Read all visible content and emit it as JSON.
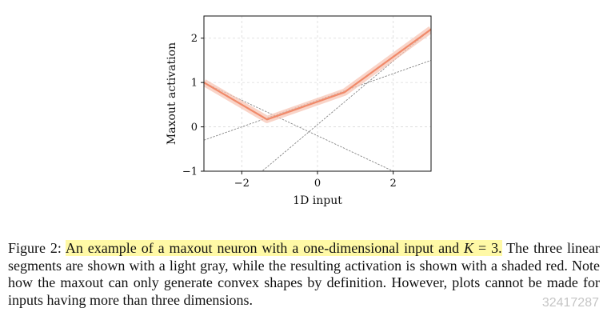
{
  "chart_data": {
    "type": "line",
    "title": "",
    "xlabel": "1D input",
    "ylabel": "Maxout activation",
    "xlim": [
      -3,
      3
    ],
    "ylim": [
      -1,
      2.5
    ],
    "x_ticks": [
      "−2",
      "0",
      "2"
    ],
    "x_tick_values": [
      -2,
      0,
      2
    ],
    "y_ticks": [
      "−1",
      "0",
      "1",
      "2"
    ],
    "y_tick_values": [
      -1,
      0,
      1,
      2
    ],
    "grid": true,
    "colors": {
      "segments": "#888888",
      "activation": "#f08a6a",
      "activation_band": "#f7c2b0"
    },
    "series": [
      {
        "x": [
          -3,
          3
        ],
        "y": [
          -0.3,
          1.5
        ]
      },
      {
        "x": [
          -3,
          3
        ],
        "y": [
          1.0,
          -1.4
        ]
      },
      {
        "x": [
          -3,
          3
        ],
        "y": [
          -2.1,
          2.2
        ]
      },
      {
        "x": [
          -3,
          -1.333,
          0.719,
          3
        ],
        "y": [
          1.0,
          0.167,
          0.783,
          2.2
        ]
      }
    ]
  },
  "caption": {
    "prefix": "Figure 2: ",
    "highlight": "An example of a maxout neuron with a one-dimensional input and",
    "k_symbol": "K",
    "equals": " = 3.",
    "rest_line1": " The",
    "line2": "three linear segments are shown with a light gray, while the resulting activation is shown",
    "line3": "with a shaded red. Note how the maxout can only generate convex shapes by definition.",
    "line4": "However, plots cannot be made for inputs having more than three dimensions."
  },
  "watermark": {
    "text": "32417287"
  }
}
